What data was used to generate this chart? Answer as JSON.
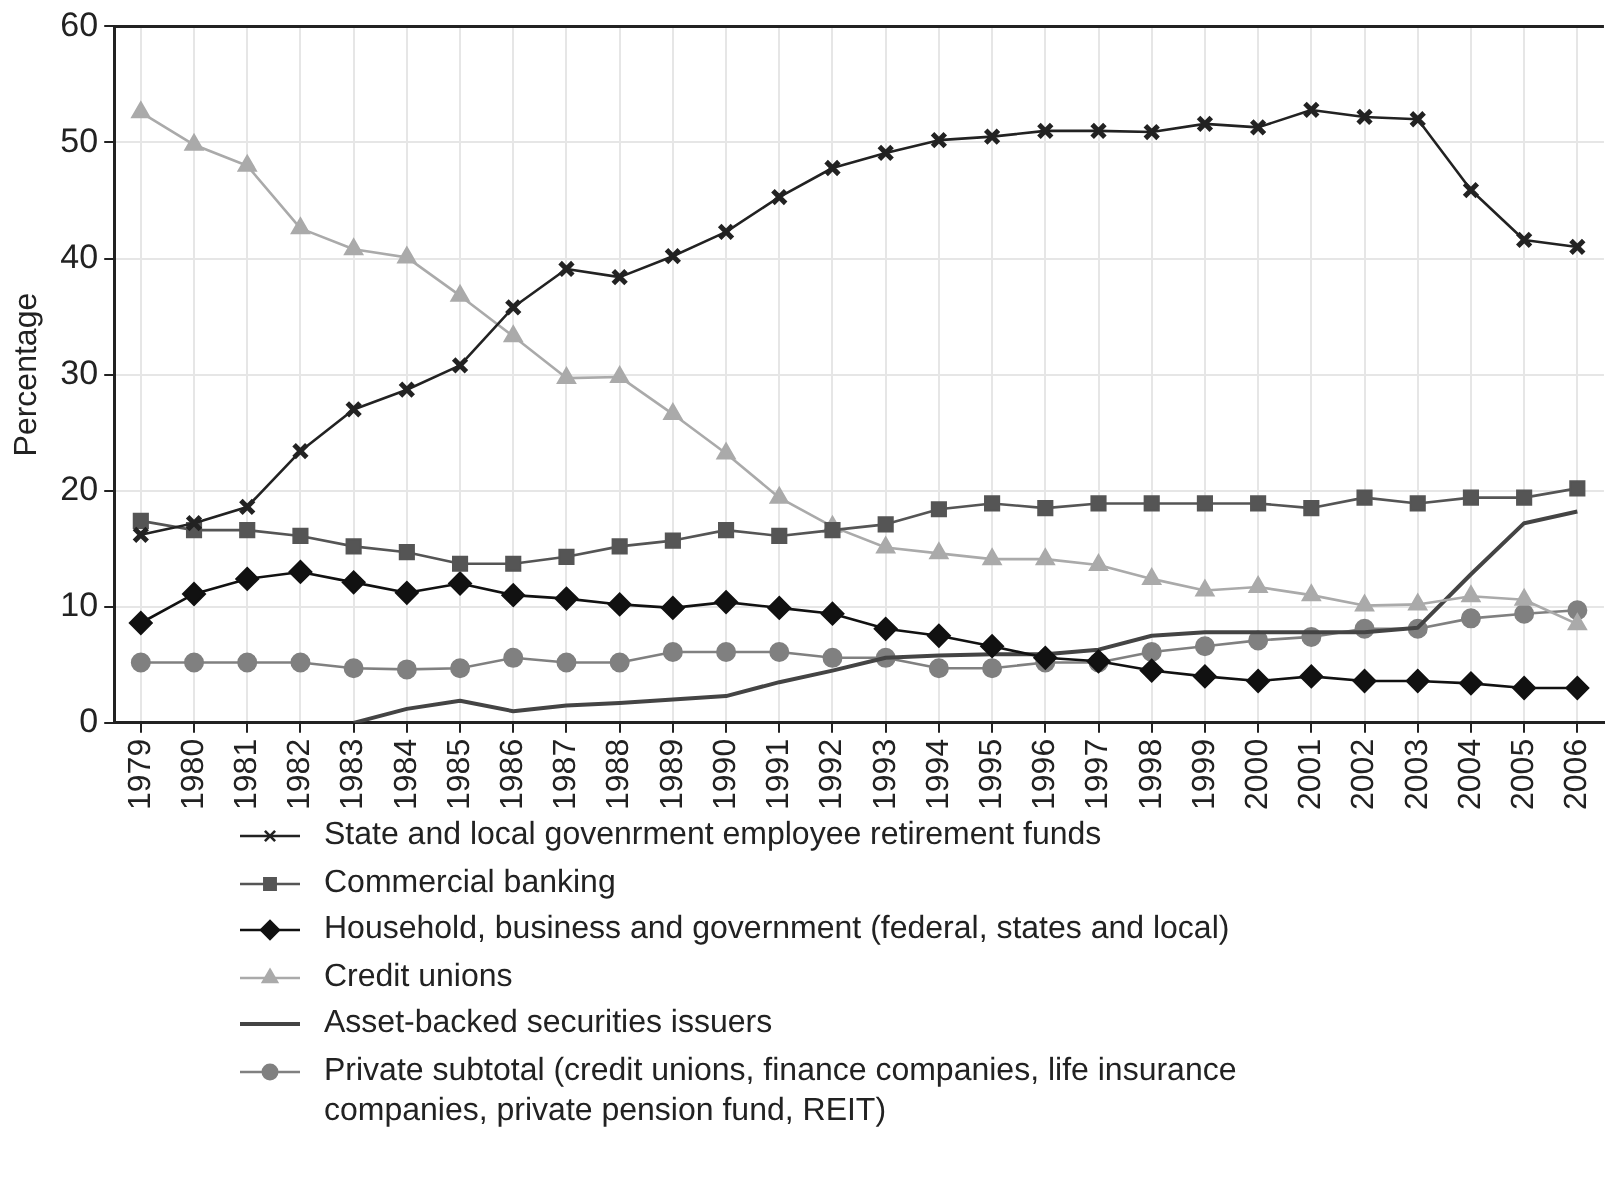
{
  "chart_data": {
    "type": "line",
    "ylabel": "Percentage",
    "categories": [
      "1979",
      "1980",
      "1981",
      "1982",
      "1983",
      "1984",
      "1985",
      "1986",
      "1987",
      "1988",
      "1989",
      "1990",
      "1991",
      "1992",
      "1993",
      "1994",
      "1995",
      "1996",
      "1997",
      "1998",
      "1999",
      "2000",
      "2001",
      "2002",
      "2003",
      "2004",
      "2005",
      "2006"
    ],
    "ylim": [
      0,
      60
    ],
    "yticks": [
      0,
      10,
      20,
      30,
      40,
      50,
      60
    ],
    "grid": true,
    "legend": "bottom",
    "series": [
      {
        "name": "State and local govenrment employee retirement funds",
        "color": "#222222",
        "marker": "cross",
        "values": [
          16.2,
          17.2,
          18.6,
          23.4,
          27.0,
          28.7,
          30.8,
          35.8,
          39.1,
          38.4,
          40.2,
          42.3,
          45.3,
          47.8,
          49.1,
          50.2,
          50.5,
          51.0,
          51.0,
          50.9,
          51.6,
          51.3,
          52.8,
          52.2,
          52.0,
          45.9,
          41.6,
          41.0
        ]
      },
      {
        "name": "Commercial banking",
        "color": "#555555",
        "marker": "square",
        "values": [
          17.4,
          16.6,
          16.6,
          16.1,
          15.2,
          14.7,
          13.7,
          13.7,
          14.3,
          15.2,
          15.7,
          16.6,
          16.1,
          16.6,
          17.1,
          18.4,
          18.9,
          18.5,
          18.9,
          18.9,
          18.9,
          18.9,
          18.5,
          19.4,
          18.9,
          19.4,
          19.4,
          20.2
        ]
      },
      {
        "name": "Household, business and government (federal, states and local)",
        "color": "#111111",
        "marker": "diamond",
        "values": [
          8.6,
          11.1,
          12.4,
          13.0,
          12.1,
          11.2,
          12.0,
          11.0,
          10.7,
          10.2,
          9.9,
          10.4,
          9.9,
          9.4,
          8.1,
          7.5,
          6.6,
          5.6,
          5.3,
          4.5,
          4.0,
          3.6,
          4.0,
          3.6,
          3.6,
          3.4,
          3.0,
          3.0
        ]
      },
      {
        "name": "Credit unions",
        "color": "#aaaaaa",
        "marker": "triangle",
        "values": [
          52.6,
          49.8,
          48.0,
          42.6,
          40.8,
          40.1,
          36.8,
          33.3,
          29.7,
          29.8,
          26.6,
          23.2,
          19.4,
          16.9,
          15.1,
          14.6,
          14.1,
          14.1,
          13.6,
          12.4,
          11.4,
          11.7,
          11.0,
          10.1,
          10.2,
          10.9,
          10.6,
          8.5
        ]
      },
      {
        "name": "Asset-backed securities issuers",
        "color": "#444444",
        "marker": "none",
        "values": [
          null,
          null,
          null,
          null,
          0,
          1.2,
          1.9,
          1.0,
          1.5,
          1.7,
          2.0,
          2.3,
          3.5,
          4.5,
          5.6,
          5.8,
          5.9,
          5.9,
          6.3,
          7.5,
          7.8,
          7.8,
          7.8,
          7.8,
          8.2,
          12.8,
          17.2,
          18.2
        ]
      },
      {
        "name": "Private subtotal (credit unions, finance companies, life insurance companies, private pension fund, REIT)",
        "color": "#808080",
        "marker": "circle",
        "values": [
          5.2,
          5.2,
          5.2,
          5.2,
          4.7,
          4.6,
          4.7,
          5.6,
          5.2,
          5.2,
          6.1,
          6.1,
          6.1,
          5.6,
          5.6,
          4.7,
          4.7,
          5.2,
          5.2,
          6.1,
          6.6,
          7.1,
          7.4,
          8.1,
          8.1,
          9.0,
          9.4,
          9.7
        ]
      }
    ]
  }
}
